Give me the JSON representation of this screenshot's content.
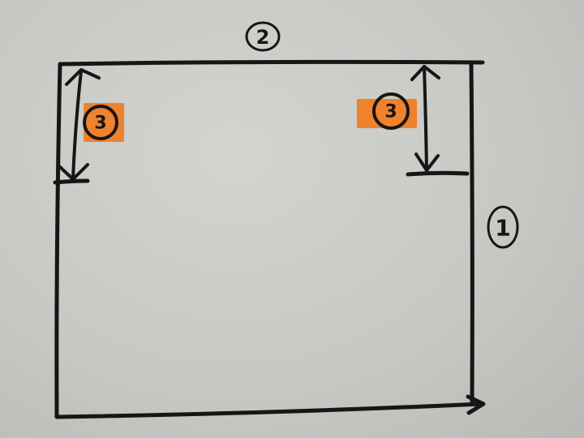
{
  "labels": {
    "right_edge": "1",
    "top_edge": "2",
    "left_callout": "3",
    "right_callout": "3"
  },
  "colors": {
    "paper": "#c9c9c6",
    "ink": "#161616",
    "highlight": "#f0822e"
  }
}
